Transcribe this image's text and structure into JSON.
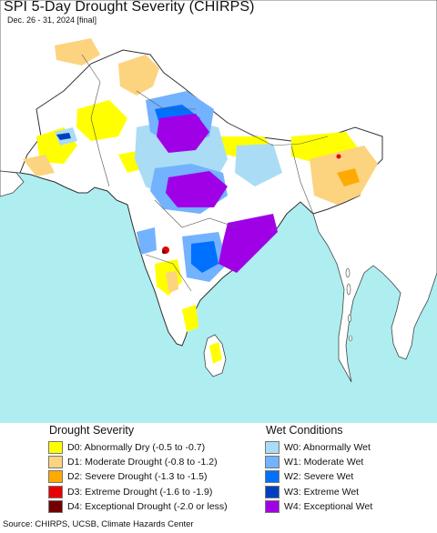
{
  "title": "SPI 5-Day Drought Severity (CHIRPS)",
  "subtitle": "Dec. 26 - 31, 2024 [final]",
  "legend": {
    "drought": {
      "heading": "Drought Severity",
      "items": [
        {
          "code": "D0",
          "label": "D0: Abnormally Dry (-0.5 to -0.7)",
          "color": "#ffff00"
        },
        {
          "code": "D1",
          "label": "D1: Moderate Drought (-0.8 to -1.2)",
          "color": "#fcd37f"
        },
        {
          "code": "D2",
          "label": "D2: Severe Drought (-1.3 to -1.5)",
          "color": "#ffaa00"
        },
        {
          "code": "D3",
          "label": "D3: Extreme Drought (-1.6 to -1.9)",
          "color": "#e60000"
        },
        {
          "code": "D4",
          "label": "D4: Exceptional Drought (-2.0 or less)",
          "color": "#730000"
        }
      ]
    },
    "wet": {
      "heading": "Wet Conditions",
      "items": [
        {
          "code": "W0",
          "label": "W0: Abnormally Wet",
          "color": "#aadcf5"
        },
        {
          "code": "W1",
          "label": "W1: Moderate Wet",
          "color": "#73b2ff"
        },
        {
          "code": "W2",
          "label": "W2: Severe Wet",
          "color": "#0070ff"
        },
        {
          "code": "W3",
          "label": "W3: Extreme Wet",
          "color": "#0040c0"
        },
        {
          "code": "W4",
          "label": "W4: Exceptional Wet",
          "color": "#a000e6"
        }
      ]
    }
  },
  "source": "Source: CHIRPS, UCSB, Climate Hazards Center",
  "colors": {
    "ocean": "#aeeef0",
    "land_out": "#ffffff",
    "land_in": "#ffffff",
    "border": "#444444"
  }
}
